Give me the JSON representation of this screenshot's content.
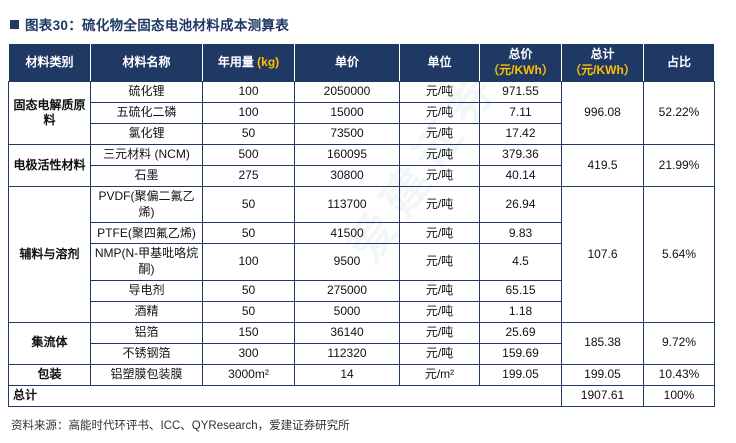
{
  "title": {
    "text": "图表30：硫化物全固态电池材料成本测算表"
  },
  "watermark": {
    "text": "爱建证券"
  },
  "colors": {
    "header_bg": "#1F3864",
    "accent_yellow": "#FFC000",
    "title_blue": "#1F3864",
    "border": "#1F3864"
  },
  "table": {
    "headers": [
      {
        "text": "材料类别"
      },
      {
        "text": "材料名称"
      },
      {
        "text": "年用量 ",
        "unit": "(kg)"
      },
      {
        "text": "单价"
      },
      {
        "text": "单位"
      },
      {
        "text": "总价",
        "unit": "（元/KWh）"
      },
      {
        "text": "总计",
        "unit": "（元/KWh）"
      },
      {
        "text": "占比"
      }
    ],
    "groups": [
      {
        "category": "固态电解质原料",
        "rows": [
          {
            "name": "硫化锂",
            "usage": "100",
            "price": "2050000",
            "unit": "元/吨",
            "total": "971.55"
          },
          {
            "name": "五硫化二磷",
            "usage": "100",
            "price": "15000",
            "unit": "元/吨",
            "total": "7.11"
          },
          {
            "name": "氯化锂",
            "usage": "50",
            "price": "73500",
            "unit": "元/吨",
            "total": "17.42"
          }
        ],
        "subtotal": "996.08",
        "share": "52.22%"
      },
      {
        "category": "电极活性材料",
        "rows": [
          {
            "name": "三元材料 (NCM)",
            "usage": "500",
            "price": "160095",
            "unit": "元/吨",
            "total": "379.36"
          },
          {
            "name": "石墨",
            "usage": "275",
            "price": "30800",
            "unit": "元/吨",
            "total": "40.14"
          }
        ],
        "subtotal": "419.5",
        "share": "21.99%"
      },
      {
        "category": "辅料与溶剂",
        "rows": [
          {
            "name": "PVDF(聚偏二氟乙烯)",
            "usage": "50",
            "price": "113700",
            "unit": "元/吨",
            "total": "26.94"
          },
          {
            "name": "PTFE(聚四氟乙烯)",
            "usage": "50",
            "price": "41500",
            "unit": "元/吨",
            "total": "9.83"
          },
          {
            "name": "NMP(N-甲基吡咯烷酮)",
            "usage": "100",
            "price": "9500",
            "unit": "元/吨",
            "total": "4.5"
          },
          {
            "name": "导电剂",
            "usage": "50",
            "price": "275000",
            "unit": "元/吨",
            "total": "65.15"
          },
          {
            "name": "酒精",
            "usage": "50",
            "price": "5000",
            "unit": "元/吨",
            "total": "1.18"
          }
        ],
        "subtotal": "107.6",
        "share": "5.64%"
      },
      {
        "category": "集流体",
        "rows": [
          {
            "name": "铝箔",
            "usage": "150",
            "price": "36140",
            "unit": "元/吨",
            "total": "25.69"
          },
          {
            "name": "不锈钢箔",
            "usage": "300",
            "price": "112320",
            "unit": "元/吨",
            "total": "159.69"
          }
        ],
        "subtotal": "185.38",
        "share": "9.72%"
      },
      {
        "category": "包装",
        "rows": [
          {
            "name": "铝塑膜包装膜",
            "usage": "3000m²",
            "price": "14",
            "unit": "元/m²",
            "total": "199.05"
          }
        ],
        "subtotal": "199.05",
        "share": "10.43%"
      }
    ],
    "grand_total": {
      "label": "总计",
      "value": "1907.61",
      "share": "100%"
    }
  },
  "footer": {
    "source": "资料来源：高能时代环评书、ICC、QYResearch，爱建证券研究所"
  }
}
